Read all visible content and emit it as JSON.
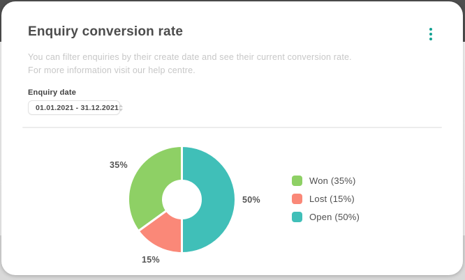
{
  "card": {
    "title": "Enquiry conversion rate",
    "description_line1": "You can filter enquiries by their create date and see their current conversion rate.",
    "description_line2": "For more information visit our help centre.",
    "filter": {
      "label": "Enquiry date",
      "value": "01.01.2021 - 31.12.2021"
    }
  },
  "colors": {
    "accent_teal": "#12a192",
    "title_text": "#4c4c4c",
    "muted_text": "#c7c7c7"
  },
  "chart_data": {
    "type": "pie",
    "donut": true,
    "title": "Enquiry conversion rate",
    "direction": "counterclockwise-from-top",
    "legend_position": "right",
    "series": [
      {
        "name": "Won",
        "value": 35,
        "label": "35%",
        "legend_label": "Won (35%)",
        "color": "#8ed065"
      },
      {
        "name": "Lost",
        "value": 15,
        "label": "15%",
        "legend_label": "Lost (15%)",
        "color": "#fa8878"
      },
      {
        "name": "Open",
        "value": 50,
        "label": "50%",
        "legend_label": "Open (50%)",
        "color": "#40bfb8"
      }
    ]
  }
}
